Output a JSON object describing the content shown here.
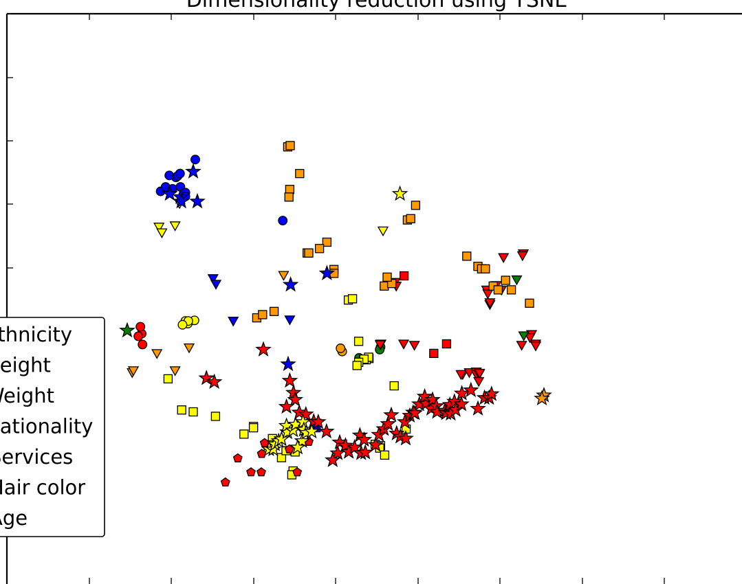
{
  "chart_data": {
    "type": "scatter",
    "title": "Dimensionality reduction using TSNE",
    "xlabel": "",
    "ylabel": "",
    "grid": false,
    "legend_position": "left",
    "marker_styles": {
      "ethnicity": "circle",
      "height": "triangle-down",
      "weight": "square",
      "nationality": "pentagon",
      "services": "star",
      "hair_color": "circle",
      "age": "square"
    },
    "colors": {
      "blue": "#0000ff",
      "orange": "#ff9900",
      "yellow": "#ffff00",
      "red": "#ff0000",
      "green": "#008000"
    },
    "legend": [
      {
        "label": "Ethnicity",
        "marker": "circle",
        "color": "#0000ff"
      },
      {
        "label": "Height",
        "marker": "triangle-down",
        "color": "#ff9900"
      },
      {
        "label": "Weight",
        "marker": "square",
        "color": "#ffff00"
      },
      {
        "label": "Nationality",
        "marker": "pentagon",
        "color": "#ff0000"
      },
      {
        "label": "Services",
        "marker": "star",
        "color": "#ff0000"
      },
      {
        "label": "Hair color",
        "marker": "circle",
        "color": "#008000"
      },
      {
        "label": "Age",
        "marker": "square",
        "color": "#ff9900"
      }
    ],
    "series": [
      {
        "key": "circles_blue",
        "marker": "circle",
        "color": "#0000ff",
        "x": [
          -62.4,
          -61.2,
          -60.3,
          -59.5,
          -58.7,
          -58.3,
          -57.7,
          -57.6,
          -56.4,
          -56.4,
          -54.0,
          -32.8
        ],
        "y": [
          22.0,
          22.7,
          24.5,
          22.4,
          24.2,
          24.4,
          24.8,
          22.7,
          21.8,
          21.2,
          27.0,
          17.4
        ]
      },
      {
        "key": "circles_red",
        "marker": "circle",
        "color": "#ff0000",
        "x": [
          -66.8,
          -67.0,
          -67.8,
          -67.3
        ],
        "y": [
          -2.1,
          -0.4,
          -0.8,
          0.7
        ]
      },
      {
        "key": "circles_yellow",
        "marker": "circle",
        "color": "#ffff00",
        "x": [
          -54.2,
          -56.4,
          -55.8,
          -55.7,
          -57.1
        ],
        "y": [
          1.7,
          1.6,
          1.2,
          1.6,
          1.0
        ]
      },
      {
        "key": "circles_green",
        "marker": "circle",
        "color": "#008000",
        "x": [
          -9.1,
          -9.3,
          -14.3
        ],
        "y": [
          -2.5,
          -2.9,
          -4.2
        ]
      },
      {
        "key": "circles_orange",
        "marker": "circle",
        "color": "#ff9900",
        "x": [
          -18.4,
          -18.8
        ],
        "y": [
          -3.2,
          -2.7
        ]
      },
      {
        "key": "triangles_yellow",
        "marker": "triangle-down",
        "color": "#ffff00",
        "x": [
          -62.8,
          -62.1,
          -58.9,
          -57.8,
          -8.5
        ],
        "y": [
          16.4,
          15.5,
          16.6,
          20.1,
          15.8
        ]
      },
      {
        "key": "triangles_blue",
        "marker": "triangle-down",
        "color": "#0000ff",
        "x": [
          -49.7,
          -44.8,
          -49.0,
          -31.1
        ],
        "y": [
          8.3,
          1.6,
          7.4,
          1.8
        ]
      },
      {
        "key": "triangles_orange",
        "marker": "triangle-down",
        "color": "#ff9900",
        "x": [
          -69.3,
          -69.0,
          -63.3,
          -58.9,
          -55.5,
          -32.6
        ],
        "y": [
          -6.5,
          -6.2,
          -3.5,
          -6.2,
          -2.6,
          8.8
        ]
      },
      {
        "key": "triangles_red",
        "marker": "triangle-down",
        "color": "#ff0000",
        "x": [
          -5.6,
          -5.3,
          -3.5,
          -0.9,
          -9.0,
          -9.2,
          10.8,
          10.4,
          12.4,
          14.1,
          14.1,
          14.8,
          14.9,
          14.7,
          16.6,
          16.9,
          17.4,
          17.4,
          18.9,
          20.2,
          20.7,
          25.5,
          25.3,
          27.5,
          27.1,
          28.5,
          28.5,
          25.1
        ],
        "y": [
          7.7,
          7.1,
          -2.0,
          -2.2,
          -2.0,
          -2.1,
          -6.8,
          -6.8,
          -6.5,
          -6.4,
          -6.8,
          -6.8,
          -6.6,
          -7.9,
          6.5,
          5.9,
          4.2,
          4.5,
          7.2,
          6.5,
          11.6,
          12.2,
          11.9,
          -0.5,
          -1.0,
          -2.0,
          -2.3,
          -2.2
        ]
      },
      {
        "key": "triangles_green",
        "marker": "triangle-down",
        "color": "#008000",
        "x": [
          25.6,
          23.9
        ],
        "y": [
          -0.7,
          8.1
        ]
      },
      {
        "key": "squares_orange",
        "marker": "square",
        "color": "#ff9900",
        "x": [
          -2.6,
          -1.8,
          -0.6,
          -39.1,
          -37.7,
          -34.9,
          -28.7,
          -31.6,
          -31.0,
          -31.1,
          -31.3,
          -22.1,
          -23.9,
          -26.9,
          -26.5,
          -20.4,
          -20.4,
          -8.2,
          -6.4,
          -7.5,
          11.8,
          14.5,
          15.4,
          16.3,
          18.2,
          19.4,
          21.2,
          22.6,
          27.0
        ],
        "y": [
          17.5,
          17.7,
          19.8,
          2.1,
          2.6,
          3.1,
          24.8,
          29.0,
          29.2,
          22.3,
          21.1,
          14.0,
          13.0,
          12.3,
          12.3,
          9.7,
          9.1,
          7.1,
          7.5,
          8.5,
          11.8,
          10.2,
          9.8,
          9.8,
          7.1,
          6.5,
          8.0,
          6.5,
          4.4
        ]
      },
      {
        "key": "squares_yellow",
        "marker": "square",
        "color": "#ffff00",
        "x": [
          -60.6,
          -57.3,
          -54.5,
          -49.1,
          -42.2,
          -39.9,
          -39.9,
          -35.3,
          -36.3,
          -36.3,
          -33.1,
          -32.0,
          -29.8,
          -30.3,
          -30.6,
          -10.4,
          -9.1,
          -9.3,
          -8.1,
          -5.8,
          -2.9,
          -11.9,
          -12.6,
          -13.2,
          -12.0,
          -13.1,
          -14.4,
          -14.8,
          -16.9,
          -15.9,
          -14.4
        ],
        "y": [
          -7.5,
          -12.4,
          -12.7,
          -13.4,
          -16.2,
          -15.0,
          -15.2,
          -16.9,
          -17.9,
          -18.5,
          -19.9,
          -18.8,
          -19.0,
          -22.0,
          -22.6,
          -17.8,
          -18.0,
          -18.4,
          -19.5,
          -8.6,
          -15.4,
          -4.3,
          -4.5,
          -4.4,
          -4.1,
          -4.4,
          -4.9,
          -5.4,
          4.9,
          5.1,
          -1.6
        ]
      },
      {
        "key": "squares_red",
        "marker": "square",
        "color": "#ff0000",
        "x": [
          -3.4,
          6.9,
          3.8
        ],
        "y": [
          8.7,
          -2.0,
          -3.5
        ]
      },
      {
        "key": "squares_blue",
        "marker": "square",
        "color": "#0000ff",
        "x": [
          -24.7
        ],
        "y": [
          -15.2
        ]
      },
      {
        "key": "pentagons_red",
        "marker": "pentagon",
        "color": "#ff0000",
        "x": [
          -46.7,
          -43.7,
          -40.5,
          -38.0,
          -37.9,
          -37.2,
          -31.2,
          -26.5,
          -29.3
        ],
        "y": [
          -23.8,
          -20.0,
          -22.2,
          -22.2,
          -19.3,
          -17.6,
          -18.6,
          -17.4,
          -22.2
        ]
      },
      {
        "key": "stars_blue",
        "marker": "star",
        "color": "#0000ff",
        "x": [
          -60.2,
          -57.6,
          -57.4,
          -53.5,
          -54.5,
          -31.5,
          -30.9,
          -22.1
        ],
        "y": [
          21.6,
          21.1,
          20.4,
          20.4,
          25.1,
          -5.2,
          7.3,
          9.1
        ]
      },
      {
        "key": "stars_red",
        "marker": "star",
        "color": "#ff0000",
        "x": [
          -51.3,
          -49.4,
          -37.5,
          -31.1,
          -30.2,
          -29.8,
          -31.9,
          -28.8,
          -27.2,
          -25.3,
          -24.2,
          -22.2,
          -19.5,
          -20.7,
          -19.0,
          -17.6,
          -16.8,
          -15.4,
          -14.1,
          -13.8,
          -12.8,
          -13.1,
          -10.3,
          -9.5,
          -8.3,
          -7.3,
          -6.5,
          -5.2,
          -4.3,
          -3.0,
          -3.2,
          -2.0,
          -1.2,
          -0.8,
          0.3,
          1.9,
          1.6,
          3.2,
          3.5,
          4.4,
          4.6,
          6.5,
          6.8,
          6.8,
          7.7,
          8.8,
          7.9,
          9.1,
          10.5,
          10.6,
          12.8,
          14.5,
          16.1,
          17.2,
          17.8
        ],
        "y": [
          -7.4,
          -8.0,
          -2.9,
          -7.8,
          -9.7,
          -10.8,
          -11.9,
          -12.8,
          -13.1,
          -14.2,
          -14.3,
          -15.8,
          -19.2,
          -20.3,
          -17.5,
          -18.0,
          -19.0,
          -18.3,
          -16.4,
          -19.2,
          -19.1,
          -17.1,
          -17.9,
          -16.3,
          -15.4,
          -14.6,
          -13.2,
          -16.1,
          -16.6,
          -16.9,
          -14.3,
          -13.3,
          -12.8,
          -12.9,
          -11.5,
          -11.4,
          -10.3,
          -12.2,
          -10.8,
          -11.8,
          -12.7,
          -12.5,
          -12.8,
          -12.9,
          -11.6,
          -11.1,
          -13.0,
          -12.4,
          -11.5,
          -9.8,
          -9.3,
          -12.2,
          -10.5,
          -10.5,
          -9.9
        ]
      },
      {
        "key": "stars_yellow",
        "marker": "star",
        "color": "#ffff00",
        "x": [
          -36.1,
          -35.1,
          -34.7,
          -33.8,
          -33.1,
          -31.7,
          -31.9,
          -30.3,
          -29.7,
          -28.1,
          -29.2,
          -27.9,
          -27.7,
          -27.1,
          -25.8,
          -4.4
        ],
        "y": [
          -18.6,
          -18.6,
          -17.8,
          -17.3,
          -17.0,
          -15.9,
          -14.9,
          -15.6,
          -14.7,
          -17.3,
          -18.3,
          -14.3,
          -15.5,
          -16.0,
          -15.8,
          21.6
        ]
      },
      {
        "key": "stars_green",
        "marker": "star",
        "color": "#008000",
        "x": [
          -70.5
        ],
        "y": [
          0.1
        ]
      },
      {
        "key": "stars_orange",
        "marker": "star",
        "color": "#ff9900",
        "x": [
          30.5,
          30.0
        ],
        "y": [
          -10.1,
          -10.6
        ]
      }
    ]
  }
}
